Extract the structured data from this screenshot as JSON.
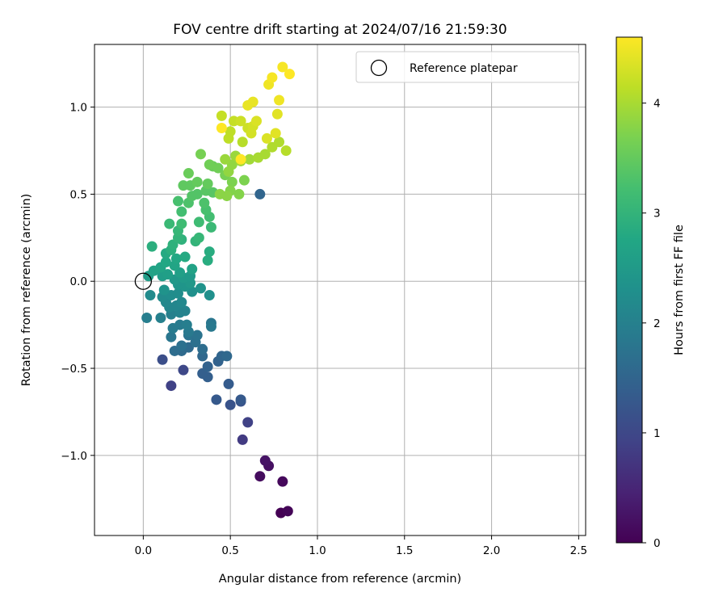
{
  "chart_data": {
    "type": "scatter",
    "title": "FOV centre drift starting at 2024/07/16 21:59:30",
    "xlabel": "Angular distance from reference (arcmin)",
    "ylabel": "Rotation from reference (arcmin)",
    "xlim": [
      -0.28,
      2.54
    ],
    "ylim": [
      -1.46,
      1.36
    ],
    "xticks": [
      0.0,
      0.5,
      1.0,
      1.5,
      2.0,
      2.5
    ],
    "xtick_labels": [
      "0.0",
      "0.5",
      "1.0",
      "1.5",
      "2.0",
      "2.5"
    ],
    "yticks": [
      -1.0,
      -0.5,
      0.0,
      0.5,
      1.0
    ],
    "ytick_labels": [
      "−1.0",
      "−0.5",
      "0.0",
      "0.5",
      "1.0"
    ],
    "grid": true,
    "legend": {
      "position": "top-right",
      "entries": [
        "Reference platepar"
      ]
    },
    "reference_point": {
      "x": 0.0,
      "y": 0.0
    },
    "colorbar": {
      "label": "Hours from first FF file",
      "colormap": "viridis",
      "range": [
        0,
        4.6
      ],
      "ticks": [
        0,
        1,
        2,
        3,
        4
      ],
      "tick_labels": [
        "0",
        "1",
        "2",
        "3",
        "4"
      ]
    },
    "points": [
      [
        0.79,
        -1.33,
        0.0
      ],
      [
        0.83,
        -1.32,
        0.05
      ],
      [
        0.8,
        -1.15,
        0.1
      ],
      [
        0.67,
        -1.12,
        0.15
      ],
      [
        0.72,
        -1.06,
        0.2
      ],
      [
        0.7,
        -1.03,
        0.25
      ],
      [
        0.57,
        -0.91,
        0.8
      ],
      [
        0.6,
        -0.81,
        0.9
      ],
      [
        0.16,
        -0.6,
        0.9
      ],
      [
        0.23,
        -0.51,
        1.0
      ],
      [
        0.11,
        -0.45,
        1.1
      ],
      [
        0.56,
        -0.69,
        1.2
      ],
      [
        0.5,
        -0.71,
        1.2
      ],
      [
        0.56,
        -0.68,
        1.3
      ],
      [
        0.42,
        -0.68,
        1.3
      ],
      [
        0.49,
        -0.59,
        1.35
      ],
      [
        0.37,
        -0.55,
        1.4
      ],
      [
        0.34,
        -0.53,
        1.4
      ],
      [
        0.37,
        -0.49,
        1.45
      ],
      [
        0.43,
        -0.46,
        1.45
      ],
      [
        0.45,
        -0.43,
        1.5
      ],
      [
        0.48,
        -0.43,
        1.55
      ],
      [
        0.34,
        -0.43,
        1.55
      ],
      [
        0.22,
        -0.4,
        1.6
      ],
      [
        0.26,
        -0.38,
        1.6
      ],
      [
        0.34,
        -0.39,
        1.65
      ],
      [
        0.18,
        -0.4,
        1.65
      ],
      [
        0.22,
        -0.37,
        1.7
      ],
      [
        0.3,
        -0.35,
        1.7
      ],
      [
        0.26,
        -0.31,
        1.75
      ],
      [
        0.31,
        -0.31,
        1.75
      ],
      [
        0.16,
        -0.32,
        1.8
      ],
      [
        0.39,
        -0.24,
        1.8
      ],
      [
        0.39,
        -0.26,
        1.85
      ],
      [
        0.26,
        -0.29,
        1.85
      ],
      [
        0.17,
        -0.27,
        1.9
      ],
      [
        0.21,
        -0.25,
        1.9
      ],
      [
        0.25,
        -0.25,
        1.95
      ],
      [
        0.02,
        -0.21,
        1.95
      ],
      [
        0.1,
        -0.21,
        2.0
      ],
      [
        0.16,
        -0.19,
        2.0
      ],
      [
        0.21,
        -0.18,
        2.05
      ],
      [
        0.24,
        -0.17,
        2.05
      ],
      [
        0.15,
        -0.15,
        2.1
      ],
      [
        0.19,
        -0.14,
        2.1
      ],
      [
        0.13,
        -0.12,
        2.15
      ],
      [
        0.22,
        -0.12,
        2.15
      ],
      [
        0.11,
        -0.09,
        2.2
      ],
      [
        0.04,
        -0.08,
        2.2
      ],
      [
        0.16,
        -0.08,
        2.25
      ],
      [
        0.2,
        -0.07,
        2.25
      ],
      [
        0.38,
        -0.08,
        2.3
      ],
      [
        0.28,
        -0.06,
        2.3
      ],
      [
        0.12,
        -0.05,
        2.35
      ],
      [
        0.33,
        -0.04,
        2.35
      ],
      [
        0.24,
        -0.03,
        2.4
      ],
      [
        0.2,
        -0.02,
        2.4
      ],
      [
        0.27,
        -0.01,
        2.45
      ],
      [
        0.18,
        0.01,
        2.45
      ],
      [
        0.23,
        0.02,
        2.5
      ],
      [
        0.27,
        0.03,
        2.5
      ],
      [
        0.11,
        0.03,
        2.55
      ],
      [
        0.03,
        0.03,
        2.55
      ],
      [
        0.14,
        0.04,
        2.6
      ],
      [
        0.21,
        0.05,
        2.6
      ],
      [
        0.06,
        0.06,
        2.65
      ],
      [
        0.28,
        0.07,
        2.65
      ],
      [
        0.1,
        0.08,
        2.7
      ],
      [
        0.18,
        0.09,
        2.7
      ],
      [
        0.13,
        0.11,
        2.75
      ],
      [
        0.19,
        0.13,
        2.75
      ],
      [
        0.24,
        0.14,
        2.8
      ],
      [
        0.13,
        0.16,
        2.8
      ],
      [
        0.37,
        0.12,
        2.85
      ],
      [
        0.38,
        0.17,
        2.85
      ],
      [
        0.16,
        0.18,
        2.9
      ],
      [
        0.05,
        0.2,
        2.9
      ],
      [
        0.17,
        0.21,
        2.95
      ],
      [
        0.22,
        0.24,
        2.95
      ],
      [
        0.3,
        0.23,
        3.0
      ],
      [
        0.2,
        0.25,
        3.0
      ],
      [
        0.32,
        0.25,
        3.05
      ],
      [
        0.2,
        0.29,
        3.05
      ],
      [
        0.39,
        0.31,
        3.1
      ],
      [
        0.15,
        0.33,
        3.1
      ],
      [
        0.22,
        0.33,
        3.15
      ],
      [
        0.32,
        0.34,
        3.15
      ],
      [
        0.38,
        0.37,
        3.2
      ],
      [
        0.22,
        0.4,
        3.2
      ],
      [
        0.36,
        0.41,
        3.25
      ],
      [
        0.2,
        0.46,
        3.25
      ],
      [
        0.26,
        0.45,
        3.3
      ],
      [
        0.35,
        0.45,
        3.3
      ],
      [
        0.28,
        0.49,
        3.35
      ],
      [
        0.31,
        0.5,
        3.35
      ],
      [
        0.4,
        0.51,
        3.4
      ],
      [
        0.36,
        0.52,
        3.4
      ],
      [
        0.23,
        0.55,
        3.45
      ],
      [
        0.27,
        0.55,
        3.45
      ],
      [
        0.31,
        0.57,
        3.5
      ],
      [
        0.37,
        0.56,
        3.5
      ],
      [
        0.26,
        0.62,
        3.55
      ],
      [
        0.4,
        0.66,
        3.55
      ],
      [
        0.43,
        0.65,
        3.6
      ],
      [
        0.38,
        0.67,
        3.6
      ],
      [
        0.33,
        0.73,
        3.65
      ],
      [
        0.47,
        0.61,
        3.65
      ],
      [
        0.58,
        0.58,
        3.7
      ],
      [
        0.51,
        0.57,
        3.7
      ],
      [
        0.55,
        0.5,
        3.75
      ],
      [
        0.5,
        0.52,
        3.75
      ],
      [
        0.48,
        0.49,
        3.8
      ],
      [
        0.44,
        0.5,
        3.8
      ],
      [
        0.49,
        0.63,
        3.85
      ],
      [
        0.51,
        0.67,
        3.85
      ],
      [
        0.47,
        0.7,
        3.9
      ],
      [
        0.53,
        0.72,
        3.9
      ],
      [
        0.56,
        0.69,
        3.95
      ],
      [
        0.61,
        0.7,
        3.95
      ],
      [
        0.66,
        0.71,
        4.0
      ],
      [
        0.7,
        0.73,
        4.0
      ],
      [
        0.74,
        0.77,
        4.05
      ],
      [
        0.78,
        0.8,
        4.05
      ],
      [
        0.82,
        0.75,
        4.1
      ],
      [
        0.57,
        0.8,
        4.1
      ],
      [
        0.49,
        0.82,
        4.15
      ],
      [
        0.5,
        0.86,
        4.15
      ],
      [
        0.52,
        0.92,
        4.2
      ],
      [
        0.45,
        0.95,
        4.2
      ],
      [
        0.56,
        0.92,
        4.25
      ],
      [
        0.6,
        0.88,
        4.25
      ],
      [
        0.62,
        0.85,
        4.3
      ],
      [
        0.63,
        0.89,
        4.3
      ],
      [
        0.65,
        0.92,
        4.35
      ],
      [
        0.71,
        0.82,
        4.35
      ],
      [
        0.76,
        0.85,
        4.4
      ],
      [
        0.77,
        0.96,
        4.4
      ],
      [
        0.6,
        1.01,
        4.45
      ],
      [
        0.63,
        1.03,
        4.45
      ],
      [
        0.78,
        1.04,
        4.5
      ],
      [
        0.72,
        1.13,
        4.5
      ],
      [
        0.74,
        1.17,
        4.55
      ],
      [
        0.8,
        1.23,
        4.55
      ],
      [
        0.84,
        1.19,
        4.6
      ],
      [
        0.56,
        0.7,
        4.6
      ],
      [
        0.45,
        0.88,
        4.6
      ],
      [
        0.67,
        0.5,
        1.5
      ]
    ]
  }
}
